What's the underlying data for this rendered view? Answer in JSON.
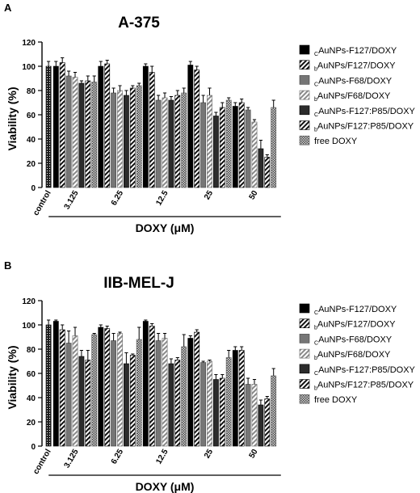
{
  "legend": [
    {
      "prefix": "C",
      "name": "AuNPs-F127/DOXY"
    },
    {
      "prefix": "b",
      "name": "AuNPs/F127/DOXY"
    },
    {
      "prefix": "C",
      "name": "AuNPs-F68/DOXY"
    },
    {
      "prefix": "b",
      "name": "AuNPs/F68/DOXY"
    },
    {
      "prefix": "C",
      "name": "AuNPs-F127:P85/DOXY"
    },
    {
      "prefix": "b",
      "name": "AuNPs/F127:P85/DOXY"
    },
    {
      "prefix": "",
      "name": "free DOXY"
    }
  ],
  "chart_data": [
    {
      "type": "bar",
      "panel": "A",
      "title": "A-375",
      "ylabel": "Viability (%)",
      "xlabel": "DOXY (μM)",
      "ylim": [
        0,
        120
      ],
      "yticks": [
        0,
        20,
        40,
        60,
        80,
        100,
        120
      ],
      "control": {
        "label": "control",
        "value": 100,
        "err": 4
      },
      "categories": [
        "3.125",
        "6.25",
        "12.5",
        "25",
        "50"
      ],
      "series": [
        {
          "name": "CAuNPs-F127/DOXY",
          "values": [
            100,
            100,
            100,
            101,
            67
          ],
          "errors": [
            4,
            4,
            2,
            3,
            3
          ]
        },
        {
          "name": "bAuNPs/F127/DOXY",
          "values": [
            103,
            102,
            95,
            97,
            70
          ],
          "errors": [
            4,
            3,
            5,
            3,
            3
          ]
        },
        {
          "name": "CAuNPs-F68/DOXY",
          "values": [
            92,
            78,
            72,
            70,
            64
          ],
          "errors": [
            4,
            4,
            4,
            6,
            2
          ]
        },
        {
          "name": "bAuNPs/F68/DOXY",
          "values": [
            91,
            80,
            74,
            76,
            54
          ],
          "errors": [
            4,
            4,
            4,
            6,
            2
          ]
        },
        {
          "name": "CAuNPs-F127:P85/DOXY",
          "values": [
            86,
            76,
            72,
            59,
            32
          ],
          "errors": [
            2,
            4,
            3,
            3,
            7
          ]
        },
        {
          "name": "bAuNPs/F127:P85/DOXY",
          "values": [
            88,
            82,
            76,
            66,
            25
          ],
          "errors": [
            4,
            2,
            4,
            4,
            2
          ]
        },
        {
          "name": "free DOXY",
          "values": [
            87,
            84,
            78,
            72,
            66
          ],
          "errors": [
            5,
            2,
            4,
            2,
            6
          ]
        }
      ]
    },
    {
      "type": "bar",
      "panel": "B",
      "title": "IIB-MEL-J",
      "ylabel": "Viability (%)",
      "xlabel": "DOXY (μM)",
      "ylim": [
        0,
        120
      ],
      "yticks": [
        0,
        20,
        40,
        60,
        80,
        100,
        120
      ],
      "control": {
        "label": "control",
        "value": 100,
        "err": 4
      },
      "categories": [
        "3.125",
        "6.25",
        "12.5",
        "25",
        "50"
      ],
      "series": [
        {
          "name": "CAuNPs-F127/DOXY",
          "values": [
            103,
            98,
            103,
            89,
            79
          ],
          "errors": [
            1,
            2,
            1,
            2,
            3
          ]
        },
        {
          "name": "bAuNPs/F127/DOXY",
          "values": [
            96,
            97,
            99,
            94,
            79
          ],
          "errors": [
            4,
            2,
            2,
            2,
            3
          ]
        },
        {
          "name": "CAuNPs-F68/DOXY",
          "values": [
            85,
            87,
            87,
            69,
            51
          ],
          "errors": [
            10,
            6,
            6,
            1,
            5
          ]
        },
        {
          "name": "bAuNPs/F68/DOXY",
          "values": [
            91,
            93,
            89,
            70,
            51
          ],
          "errors": [
            7,
            1,
            4,
            1,
            4
          ]
        },
        {
          "name": "CAuNPs-F127:P85/DOXY",
          "values": [
            74,
            68,
            68,
            55,
            34
          ],
          "errors": [
            5,
            9,
            4,
            4,
            4
          ]
        },
        {
          "name": "bAuNPs/F127:P85/DOXY",
          "values": [
            71,
            75,
            71,
            56,
            39
          ],
          "errors": [
            8,
            1,
            2,
            3,
            2
          ]
        },
        {
          "name": "free DOXY",
          "values": [
            92,
            88,
            82,
            73,
            58
          ],
          "errors": [
            1,
            10,
            10,
            6,
            6
          ]
        }
      ]
    }
  ]
}
